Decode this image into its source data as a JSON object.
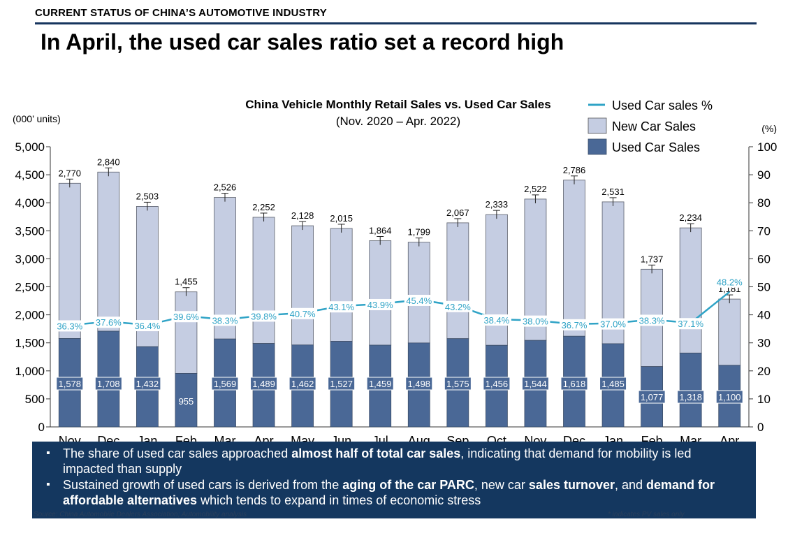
{
  "header": {
    "section_label": "CURRENT STATUS OF CHINA’S AUTOMOTIVE INDUSTRY",
    "headline": "In April, the used car sales ratio set a record high"
  },
  "chart_data": {
    "type": "bar",
    "title": "China Vehicle Monthly Retail Sales vs. Used Car Sales",
    "subtitle": "(Nov. 2020 – Apr. 2022)",
    "y_left_unit": "(000’ units)",
    "y_right_unit": "(%)",
    "ylim": [
      0,
      5000
    ],
    "y2lim": [
      0,
      100
    ],
    "y_ticks": [
      "0",
      "500",
      "1,000",
      "1,500",
      "2,000",
      "2,500",
      "3,000",
      "3,500",
      "4,000",
      "4,500",
      "5,000"
    ],
    "y2_ticks": [
      "0",
      "10",
      "20",
      "30",
      "40",
      "50",
      "60",
      "70",
      "80",
      "90",
      "100"
    ],
    "categories": [
      "Nov",
      "Dec",
      "Jan",
      "Feb",
      "Mar",
      "Apr",
      "May",
      "Jun",
      "Jul",
      "Aug",
      "Sep",
      "Oct",
      "Nov",
      "Dec",
      "Jan",
      "Feb",
      "Mar",
      "Apr"
    ],
    "stacked": true,
    "legend_position": "top-right",
    "series": [
      {
        "name": "Used Car Sales",
        "kind": "bar",
        "color": "#4a6896",
        "values": [
          1578,
          1708,
          1432,
          955,
          1569,
          1489,
          1462,
          1527,
          1459,
          1498,
          1575,
          1456,
          1544,
          1618,
          1485,
          1077,
          1318,
          1100
        ],
        "labels": [
          "1,578",
          "1,708",
          "1,432",
          "955",
          "1,569",
          "1,489",
          "1,462",
          "1,527",
          "1,459",
          "1,498",
          "1,575",
          "1,456",
          "1,544",
          "1,618",
          "1,485",
          "1,077",
          "1,318",
          "1,100"
        ]
      },
      {
        "name": "New Car Sales",
        "kind": "bar",
        "color": "#c5cde2",
        "values": [
          2770,
          2840,
          2503,
          1455,
          2526,
          2252,
          2128,
          2015,
          1864,
          1799,
          2067,
          2333,
          2522,
          2786,
          2531,
          1737,
          2234,
          1181
        ],
        "labels": [
          "2,770",
          "2,840",
          "2,503",
          "1,455",
          "2,526",
          "2,252",
          "2,128",
          "2,015",
          "1,864",
          "1,799",
          "2,067",
          "2,333",
          "2,522",
          "2,786",
          "2,531",
          "1,737",
          "2,234",
          "1,181"
        ]
      },
      {
        "name": "Used Car sales %",
        "kind": "line",
        "axis": "right",
        "color": "#2fa3c6",
        "values": [
          36.3,
          37.6,
          36.4,
          39.6,
          38.3,
          39.8,
          40.7,
          43.1,
          43.9,
          45.4,
          43.2,
          38.4,
          38.0,
          36.7,
          37.0,
          38.3,
          37.1,
          48.2
        ],
        "labels": [
          "36.3%",
          "37.6%",
          "36.4%",
          "39.6%",
          "38.3%",
          "39.8%",
          "40.7%",
          "43.1%",
          "43.9%",
          "45.4%",
          "43.2%",
          "38.4%",
          "38.0%",
          "36.7%",
          "37.0%",
          "38.3%",
          "37.1%",
          "48.2%"
        ]
      }
    ]
  },
  "bullets": {
    "b1_pre": "The share of used car sales approached ",
    "b1_bold": "almost half of total car sales",
    "b1_post": ", indicating that demand for mobility is led impacted than supply",
    "b2_pre": "Sustained growth of used cars is derived from the ",
    "b2_bold1": "aging of the car PARC",
    "b2_mid1": ", new car ",
    "b2_bold2": "sales turnover",
    "b2_mid2": ", and ",
    "b2_bold3": "demand for affordable alternatives",
    "b2_post": " which tends to expand in times of economic stress"
  },
  "footer": {
    "source": "Source: China Automobile Dealers Association; Automobility analysis",
    "note": "* indicates PV sales only"
  }
}
